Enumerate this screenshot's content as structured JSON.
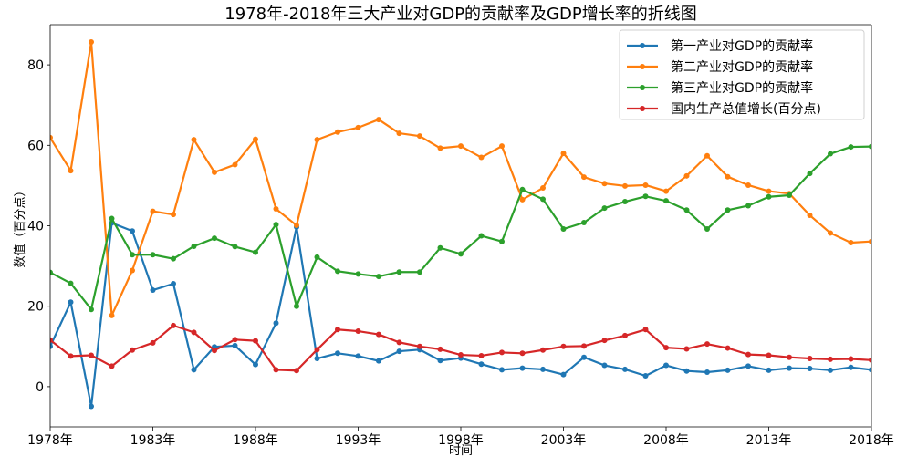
{
  "chart_data": {
    "type": "line",
    "title": "1978年-2018年三大产业对GDP的贡献率及GDP增长率的折线图",
    "xlabel": "时间",
    "ylabel": "数值（百分点）",
    "xlim": [
      1978,
      2018
    ],
    "ylim": [
      -10,
      90
    ],
    "x_ticks": [
      1978,
      1983,
      1988,
      1993,
      1998,
      2003,
      2008,
      2013,
      2018
    ],
    "x_tick_labels": [
      "1978年",
      "1983年",
      "1988年",
      "1993年",
      "1998年",
      "2003年",
      "2008年",
      "2013年",
      "2018年"
    ],
    "y_ticks": [
      0,
      20,
      40,
      60,
      80
    ],
    "y_tick_labels": [
      "0",
      "20",
      "40",
      "60",
      "80"
    ],
    "grid": false,
    "legend_position": "top-right",
    "x": [
      1978,
      1979,
      1980,
      1981,
      1982,
      1983,
      1984,
      1985,
      1986,
      1987,
      1988,
      1989,
      1990,
      1991,
      1992,
      1993,
      1994,
      1995,
      1996,
      1997,
      1998,
      1999,
      2000,
      2001,
      2002,
      2003,
      2004,
      2005,
      2006,
      2007,
      2008,
      2009,
      2010,
      2011,
      2012,
      2013,
      2014,
      2015,
      2016,
      2017,
      2018
    ],
    "series": [
      {
        "name": "第一产业对GDP的贡献率",
        "color": "#1f77b4",
        "values": [
          10.0,
          21.0,
          -4.9,
          40.7,
          38.7,
          24.0,
          25.6,
          4.2,
          9.9,
          10.2,
          5.5,
          15.8,
          39.7,
          7.0,
          8.3,
          7.6,
          6.4,
          8.8,
          9.2,
          6.5,
          7.1,
          5.6,
          4.2,
          4.6,
          4.3,
          3.0,
          7.3,
          5.3,
          4.3,
          2.7,
          5.3,
          3.9,
          3.6,
          4.1,
          5.1,
          4.1,
          4.6,
          4.5,
          4.1,
          4.8,
          4.2
        ]
      },
      {
        "name": "第二产业对GDP的贡献率",
        "color": "#ff7f0e",
        "values": [
          61.9,
          53.7,
          85.7,
          17.7,
          28.9,
          43.6,
          42.8,
          61.4,
          53.3,
          55.2,
          61.5,
          44.2,
          40.1,
          61.4,
          63.3,
          64.4,
          66.4,
          63.0,
          62.3,
          59.3,
          59.8,
          57.0,
          59.8,
          46.5,
          49.4,
          58.0,
          52.1,
          50.5,
          49.9,
          50.1,
          48.6,
          52.4,
          57.4,
          52.2,
          50.1,
          48.6,
          48.0,
          42.6,
          38.2,
          35.8,
          36.1
        ]
      },
      {
        "name": "第三产业对GDP的贡献率",
        "color": "#2ca02c",
        "values": [
          28.4,
          25.7,
          19.2,
          41.8,
          32.8,
          32.8,
          31.8,
          34.9,
          36.9,
          34.8,
          33.4,
          40.3,
          20.0,
          32.2,
          28.7,
          28.0,
          27.4,
          28.5,
          28.5,
          34.5,
          33.0,
          37.5,
          36.1,
          49.0,
          46.6,
          39.2,
          40.8,
          44.4,
          46.0,
          47.3,
          46.2,
          43.9,
          39.2,
          43.9,
          45.0,
          47.2,
          47.6,
          53.0,
          57.9,
          59.6,
          59.7
        ]
      },
      {
        "name": "国内生产总值增长(百分点)",
        "color": "#d62728",
        "values": [
          11.6,
          7.6,
          7.8,
          5.1,
          9.1,
          10.9,
          15.2,
          13.5,
          9.0,
          11.7,
          11.4,
          4.2,
          4.0,
          9.2,
          14.2,
          13.8,
          13.0,
          11.0,
          10.0,
          9.3,
          7.9,
          7.7,
          8.5,
          8.3,
          9.1,
          10.0,
          10.1,
          11.5,
          12.7,
          14.2,
          9.7,
          9.4,
          10.6,
          9.6,
          8.0,
          7.8,
          7.3,
          7.0,
          6.8,
          6.9,
          6.6
        ]
      }
    ]
  }
}
